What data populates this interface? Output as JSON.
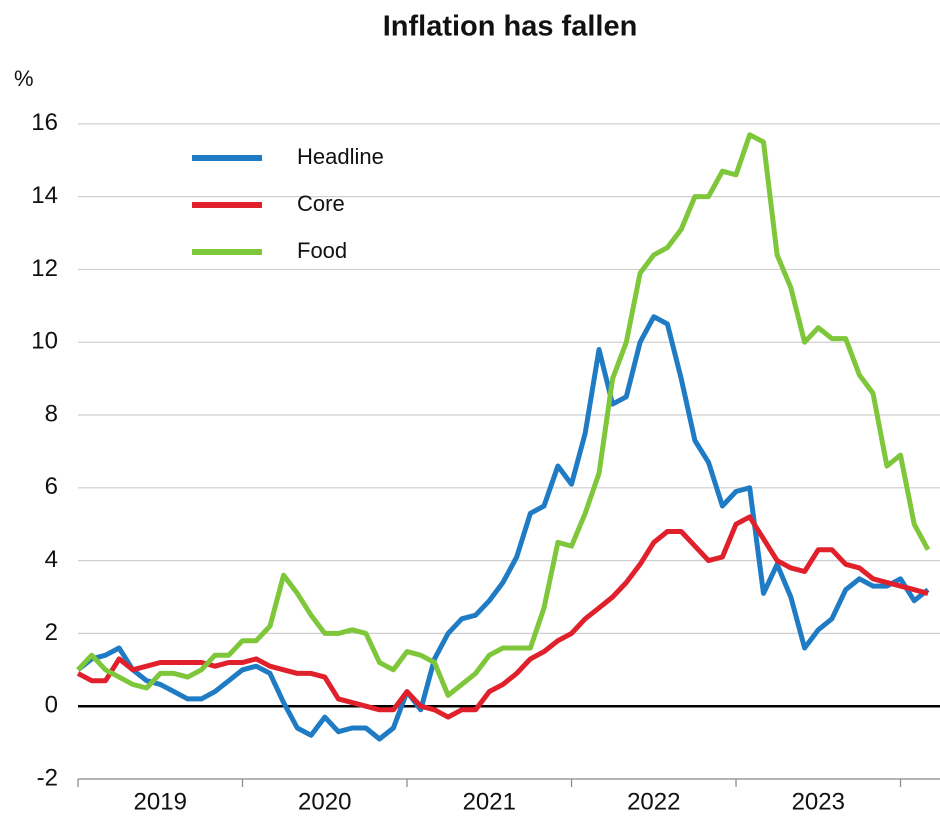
{
  "chart_data": {
    "type": "line",
    "title": "Inflation has fallen",
    "y_label": "%",
    "x": [
      2019,
      2019.083,
      2019.167,
      2019.25,
      2019.333,
      2019.417,
      2019.5,
      2019.583,
      2019.667,
      2019.75,
      2019.833,
      2019.917,
      2020,
      2020.083,
      2020.167,
      2020.25,
      2020.333,
      2020.417,
      2020.5,
      2020.583,
      2020.667,
      2020.75,
      2020.833,
      2020.917,
      2021,
      2021.083,
      2021.167,
      2021.25,
      2021.333,
      2021.417,
      2021.5,
      2021.583,
      2021.667,
      2021.75,
      2021.833,
      2021.917,
      2022,
      2022.083,
      2022.167,
      2022.25,
      2022.333,
      2022.417,
      2022.5,
      2022.583,
      2022.667,
      2022.75,
      2022.833,
      2022.917,
      2023,
      2023.083,
      2023.167,
      2023.25,
      2023.333,
      2023.417,
      2023.5,
      2023.583,
      2023.667,
      2023.75,
      2023.833,
      2023.917,
      2024,
      2024.083,
      2024.167
    ],
    "series": [
      {
        "name": "Headline",
        "color": "#1f7cc4",
        "values": [
          1.0,
          1.3,
          1.4,
          1.6,
          1.0,
          0.7,
          0.6,
          0.4,
          0.2,
          0.2,
          0.4,
          0.7,
          1.0,
          1.1,
          0.9,
          0.1,
          -0.6,
          -0.8,
          -0.3,
          -0.7,
          -0.6,
          -0.6,
          -0.9,
          -0.6,
          0.4,
          -0.1,
          1.3,
          2.0,
          2.4,
          2.5,
          2.9,
          3.4,
          4.1,
          5.3,
          5.5,
          6.6,
          6.1,
          7.5,
          9.8,
          8.3,
          8.5,
          10.0,
          10.7,
          10.5,
          9.0,
          7.3,
          6.7,
          5.5,
          5.9,
          6.0,
          3.1,
          3.9,
          3.0,
          1.6,
          2.1,
          2.4,
          3.2,
          3.5,
          3.3,
          3.3,
          3.5,
          2.9,
          3.2
        ]
      },
      {
        "name": "Core",
        "color": "#e0202a",
        "values": [
          0.9,
          0.7,
          0.7,
          1.3,
          1.0,
          1.1,
          1.2,
          1.2,
          1.2,
          1.2,
          1.1,
          1.2,
          1.2,
          1.3,
          1.1,
          1.0,
          0.9,
          0.9,
          0.8,
          0.2,
          0.1,
          0.0,
          -0.1,
          -0.1,
          0.4,
          0.0,
          -0.1,
          -0.3,
          -0.1,
          -0.1,
          0.4,
          0.6,
          0.9,
          1.3,
          1.5,
          1.8,
          2.0,
          2.4,
          2.7,
          3.0,
          3.4,
          3.9,
          4.5,
          4.8,
          4.8,
          4.4,
          4.0,
          4.1,
          5.0,
          5.2,
          4.6,
          4.0,
          3.8,
          3.7,
          4.3,
          4.3,
          3.9,
          3.8,
          3.5,
          3.4,
          3.3,
          3.2,
          3.1
        ]
      },
      {
        "name": "Food",
        "color": "#7ec63a",
        "values": [
          1.0,
          1.4,
          1.0,
          0.8,
          0.6,
          0.5,
          0.9,
          0.9,
          0.8,
          1.0,
          1.4,
          1.4,
          1.8,
          1.8,
          2.2,
          3.6,
          3.1,
          2.5,
          2.0,
          2.0,
          2.1,
          2.0,
          1.2,
          1.0,
          1.5,
          1.4,
          1.2,
          0.3,
          0.6,
          0.9,
          1.4,
          1.6,
          1.6,
          1.6,
          2.7,
          4.5,
          4.4,
          5.3,
          6.4,
          9.0,
          10.0,
          11.9,
          12.4,
          12.6,
          13.1,
          14.0,
          14.0,
          14.7,
          14.6,
          15.7,
          15.5,
          12.4,
          11.5,
          10.0,
          10.4,
          10.1,
          10.1,
          9.1,
          8.6,
          6.6,
          6.9,
          5.0,
          4.3
        ]
      }
    ],
    "xlim": [
      2019,
      2024.24
    ],
    "xticks": [
      {
        "value": 2019.5,
        "label": "2019"
      },
      {
        "value": 2020.5,
        "label": "2020"
      },
      {
        "value": 2021.5,
        "label": "2021"
      },
      {
        "value": 2022.5,
        "label": "2022"
      },
      {
        "value": 2023.5,
        "label": "2023"
      }
    ],
    "ylim": [
      -2,
      16.6
    ],
    "yticks": [
      -2,
      0,
      2,
      4,
      6,
      8,
      10,
      12,
      14,
      16
    ],
    "grid": true,
    "legend": "upper left"
  }
}
